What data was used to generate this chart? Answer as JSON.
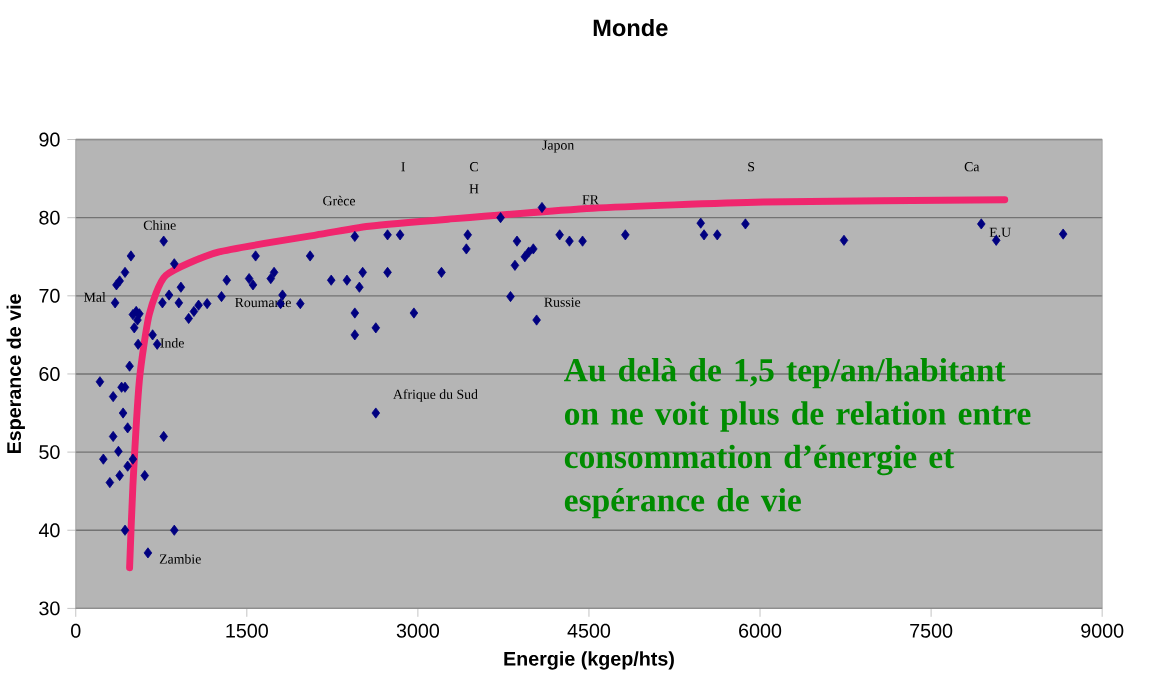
{
  "chart_data": {
    "type": "scatter",
    "title": "Monde",
    "xlabel": "Energie (kgep/hts)",
    "ylabel": "Esperance de vie",
    "xlim": [
      0,
      9000
    ],
    "ylim": [
      30,
      90
    ],
    "xticks": [
      0,
      1500,
      3000,
      4500,
      6000,
      7500,
      9000
    ],
    "yticks": [
      30,
      40,
      50,
      60,
      70,
      80,
      90
    ],
    "grid": "y",
    "marker": "diamond",
    "series": [
      {
        "color": "#000080",
        "x": [
          212,
          242,
          299,
          328,
          328,
          374,
          385,
          402,
          432,
          415,
          455,
          455,
          432,
          472,
          501,
          605,
          633,
          771,
          864,
          484,
          432,
          385,
          357,
          345,
          530,
          558,
          501,
          513,
          541,
          547,
          674,
          714,
          771,
          864,
          818,
          760,
          922,
          904,
          990,
          1036,
          1077,
          1152,
          1278,
          1324,
          1520,
          1554,
          1577,
          1710,
          1739,
          1796,
          1813,
          1969,
          2055,
          2240,
          2378,
          2487,
          2516,
          2447,
          2447,
          2631,
          2631,
          2447,
          2734,
          2734,
          2844,
          2965,
          3207,
          3437,
          3425,
          3725,
          3869,
          3851,
          3938,
          3972,
          4012,
          3812,
          4041,
          4088,
          4243,
          4329,
          4444,
          4819,
          5480,
          5509,
          5625,
          5872,
          6736,
          7940,
          8071,
          8658
        ],
        "values": [
          59.0,
          49.1,
          46.1,
          52.0,
          57.1,
          50.1,
          47.0,
          58.3,
          58.3,
          55.0,
          53.1,
          48.2,
          40.0,
          61.0,
          49.1,
          47.0,
          37.1,
          52.0,
          40.0,
          75.1,
          73.0,
          71.9,
          71.4,
          69.1,
          68.0,
          67.7,
          67.6,
          65.9,
          66.9,
          63.8,
          65.0,
          63.8,
          77.0,
          74.1,
          70.1,
          69.1,
          71.1,
          69.1,
          67.1,
          68.0,
          68.8,
          69.0,
          69.9,
          72.0,
          72.2,
          71.4,
          75.1,
          72.2,
          73.0,
          69.0,
          70.1,
          69.0,
          75.1,
          72.0,
          72.0,
          71.1,
          73.0,
          67.8,
          65.0,
          65.9,
          55.0,
          77.6,
          73.0,
          77.8,
          77.8,
          67.8,
          73.0,
          77.8,
          76.0,
          80.0,
          77.0,
          73.9,
          75.0,
          75.6,
          76.0,
          69.9,
          66.9,
          81.3,
          77.8,
          77.0,
          77.0,
          77.8,
          79.3,
          77.8,
          77.8,
          79.2,
          77.1,
          79.2,
          77.1,
          77.9
        ]
      },
      {
        "type": "line",
        "color": "#f0266e",
        "marker": "none",
        "x": [
          472,
          501,
          558,
          644,
          789,
          1249,
          2113,
          2573,
          3264,
          4531,
          6028,
          8146
        ],
        "values": [
          35.2,
          45.7,
          59.2,
          67.6,
          72.6,
          75.6,
          77.8,
          78.9,
          79.8,
          81.2,
          82.0,
          82.3
        ]
      }
    ],
    "annotations": [
      {
        "text": "Mal",
        "x": 345,
        "y": 69.1
      },
      {
        "text": "Chine",
        "x": 771,
        "y": 77.0
      },
      {
        "text": "Inde",
        "x": 674,
        "y": 65.0
      },
      {
        "text": "Roumanie",
        "x": 1278,
        "y": 69.9
      },
      {
        "text": "Zambie",
        "x": 633,
        "y": 37.1
      },
      {
        "text": "Grèce",
        "x": 2447,
        "y": 77.6
      },
      "I",
      "C",
      "H",
      "Japon",
      {
        "text": "FR",
        "x": 4444,
        "y": 77.0
      },
      "S",
      "Ca",
      {
        "text": "E.U",
        "x": 8071,
        "y": 77.1
      },
      {
        "text": "Russie",
        "x": 4041,
        "y": 66.9
      },
      {
        "text": "Afrique du Sud",
        "x": 2631,
        "y": 55.0
      },
      "Au delà de 1,5 tep/an/habitant on ne voit plus de relation entre consommation d’énergie et espérance de vie"
    ]
  }
}
